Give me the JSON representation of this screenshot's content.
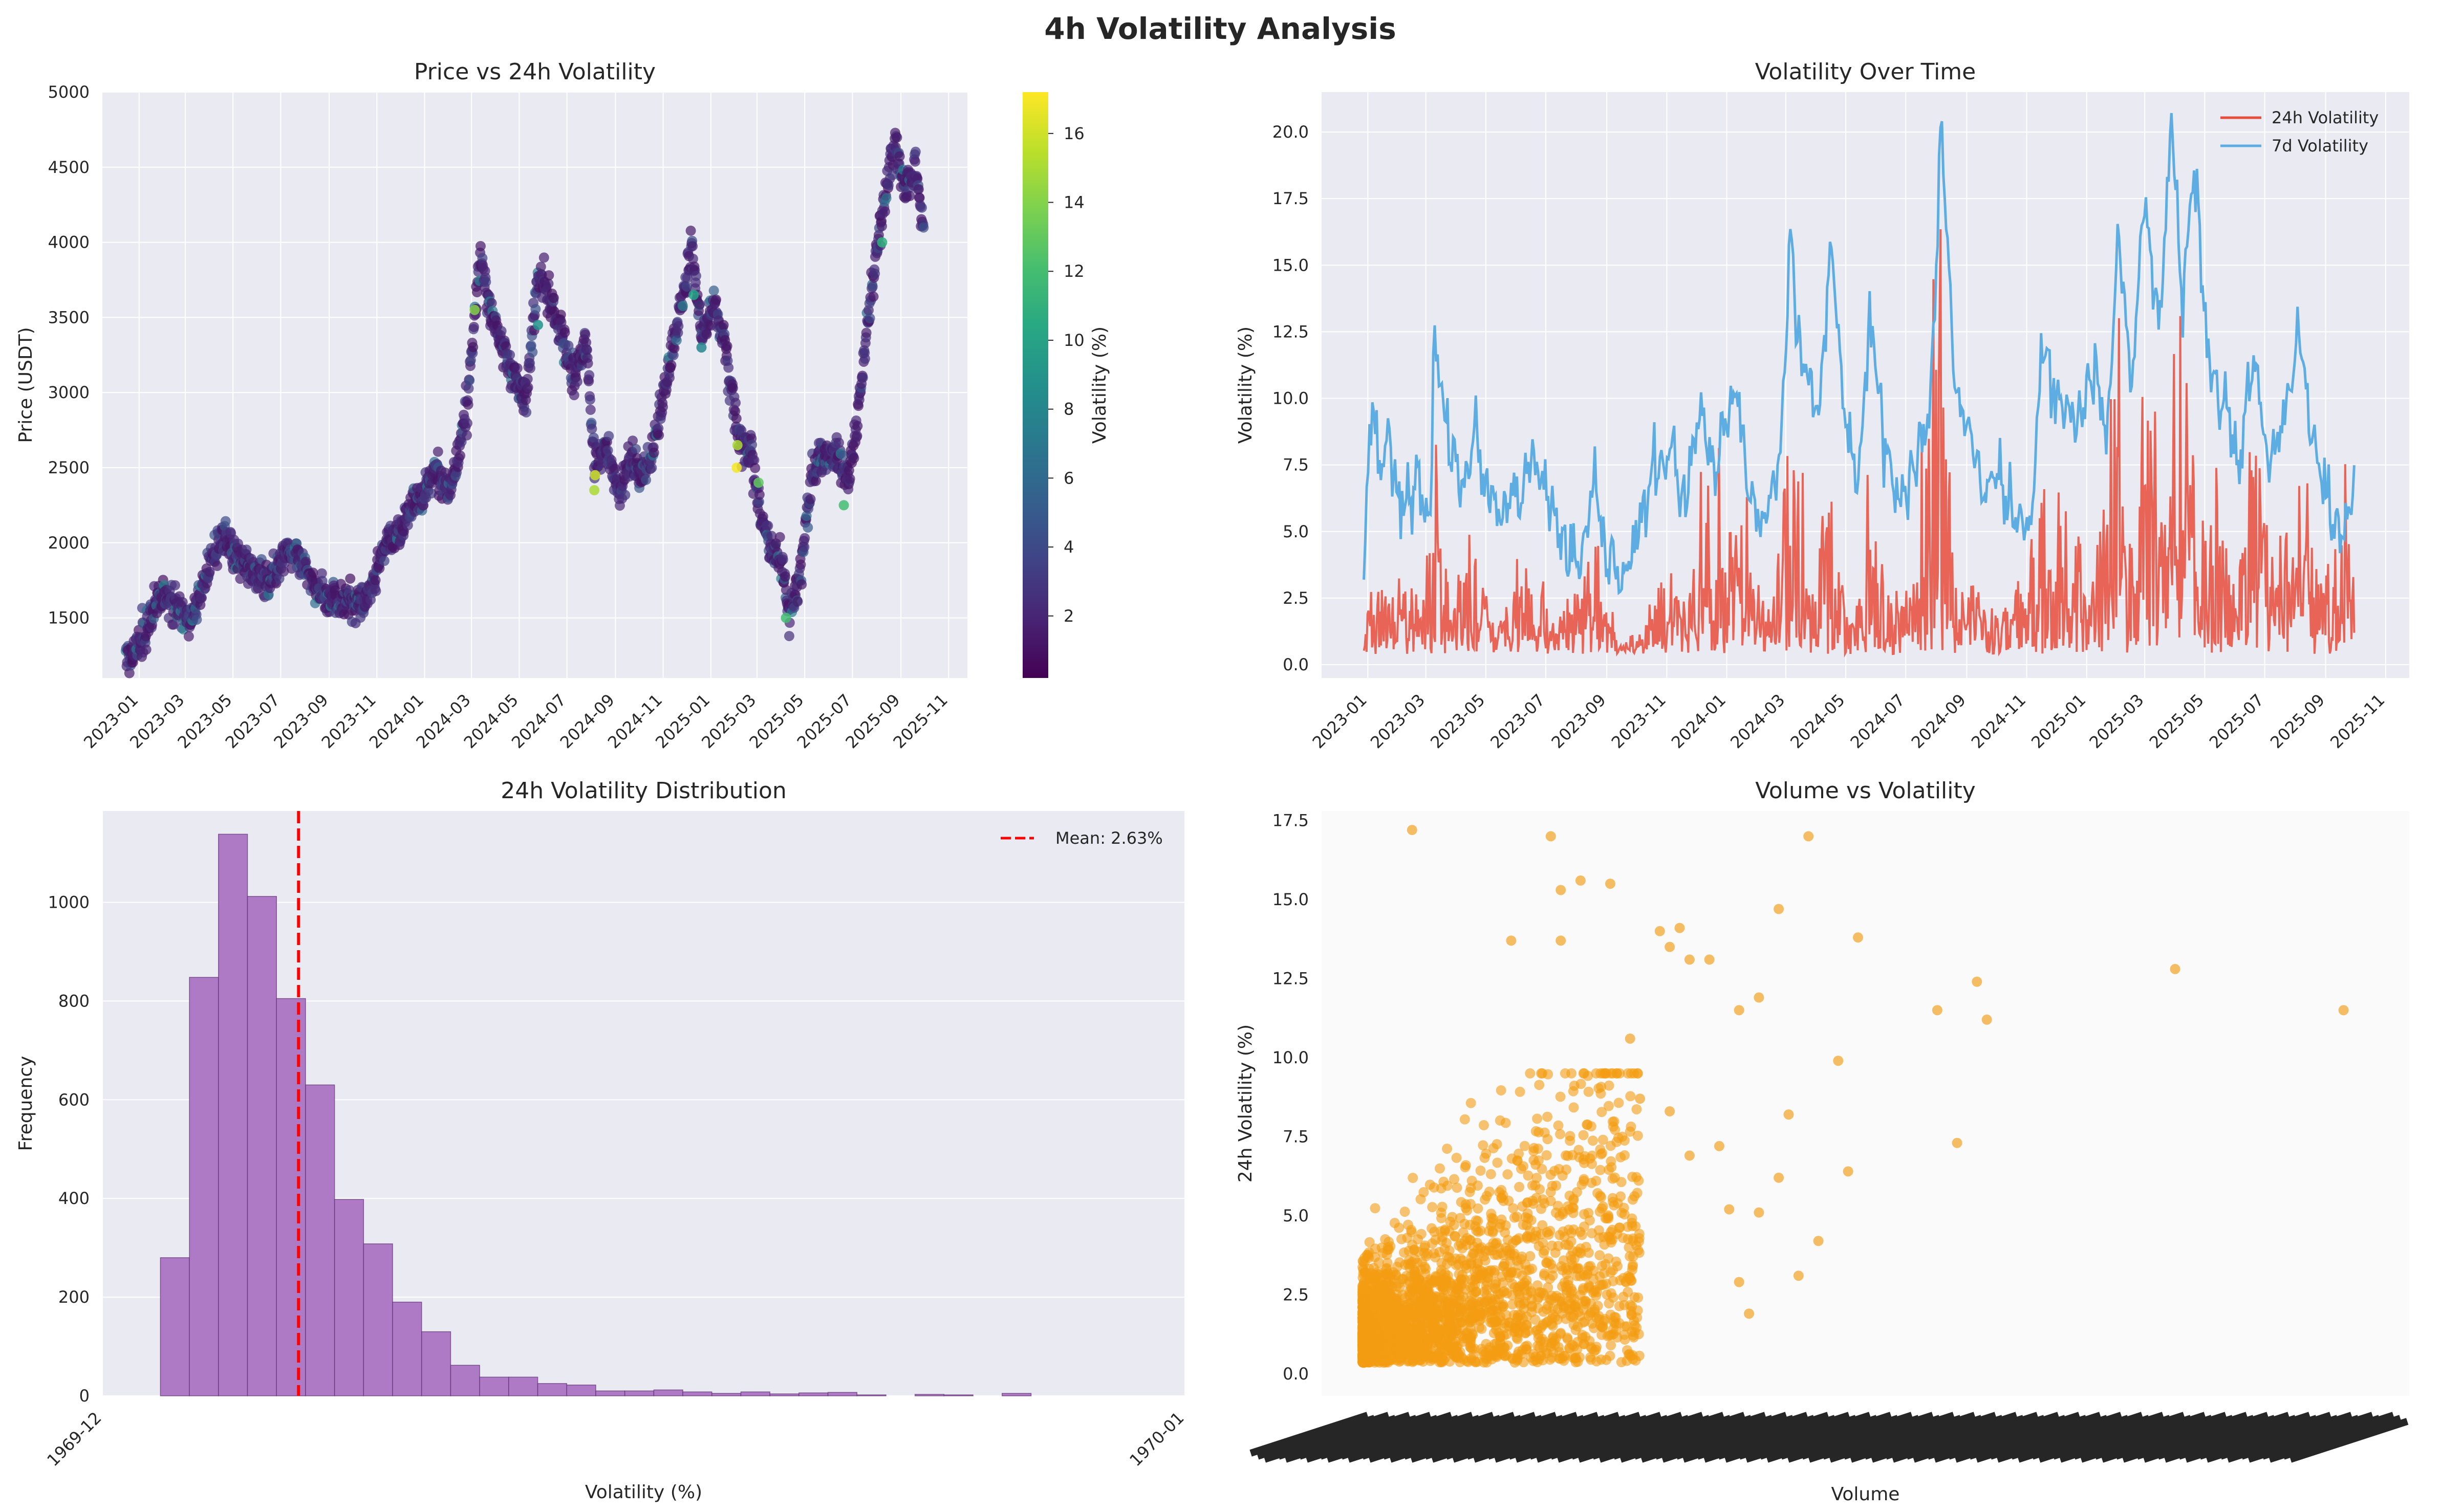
{
  "figure": {
    "suptitle": "4h Volatility Analysis"
  },
  "chart_data": [
    {
      "id": "price",
      "type": "scatter",
      "title": "Price vs 24h Volatility",
      "xlabel": "",
      "ylabel": "Price (USDT)",
      "x_ticks": [
        "2023-01",
        "2023-03",
        "2023-05",
        "2023-07",
        "2023-09",
        "2023-11",
        "2024-01",
        "2024-03",
        "2024-05",
        "2024-07",
        "2024-09",
        "2024-11",
        "2025-01",
        "2025-03",
        "2025-05",
        "2025-07",
        "2025-09",
        "2025-11"
      ],
      "y_ticks": [
        1500,
        2000,
        2500,
        3000,
        3500,
        4000,
        4500,
        5000
      ],
      "ylim": [
        1100,
        5000
      ],
      "colorbar": {
        "label": "Volatility (%)",
        "ticks": [
          2,
          4,
          6,
          8,
          10,
          12,
          14,
          16
        ],
        "range": [
          0.2,
          17.2
        ],
        "colormap": "viridis"
      },
      "price_path": [
        [
          "2022-12-15",
          1200
        ],
        [
          "2022-12-28",
          1300
        ],
        [
          "2023-01-10",
          1420
        ],
        [
          "2023-01-20",
          1600
        ],
        [
          "2023-02-05",
          1650
        ],
        [
          "2023-02-20",
          1560
        ],
        [
          "2023-03-10",
          1480
        ],
        [
          "2023-03-25",
          1750
        ],
        [
          "2023-04-10",
          1950
        ],
        [
          "2023-04-20",
          2100
        ],
        [
          "2023-05-05",
          1900
        ],
        [
          "2023-05-25",
          1820
        ],
        [
          "2023-06-15",
          1750
        ],
        [
          "2023-06-30",
          1900
        ],
        [
          "2023-07-15",
          1950
        ],
        [
          "2023-07-30",
          1850
        ],
        [
          "2023-08-15",
          1680
        ],
        [
          "2023-08-30",
          1650
        ],
        [
          "2023-09-15",
          1600
        ],
        [
          "2023-09-30",
          1620
        ],
        [
          "2023-10-15",
          1580
        ],
        [
          "2023-10-30",
          1800
        ],
        [
          "2023-11-15",
          2050
        ],
        [
          "2023-11-30",
          2050
        ],
        [
          "2023-12-15",
          2250
        ],
        [
          "2023-12-30",
          2300
        ],
        [
          "2024-01-15",
          2500
        ],
        [
          "2024-01-30",
          2350
        ],
        [
          "2024-02-10",
          2500
        ],
        [
          "2024-02-25",
          2950
        ],
        [
          "2024-03-12",
          3900
        ],
        [
          "2024-03-25",
          3550
        ],
        [
          "2024-04-10",
          3300
        ],
        [
          "2024-04-25",
          3100
        ],
        [
          "2024-05-10",
          2950
        ],
        [
          "2024-05-25",
          3800
        ],
        [
          "2024-06-10",
          3600
        ],
        [
          "2024-06-25",
          3350
        ],
        [
          "2024-07-10",
          3100
        ],
        [
          "2024-07-25",
          3350
        ],
        [
          "2024-08-05",
          2500
        ],
        [
          "2024-08-20",
          2650
        ],
        [
          "2024-09-05",
          2350
        ],
        [
          "2024-09-20",
          2550
        ],
        [
          "2024-10-05",
          2450
        ],
        [
          "2024-10-20",
          2650
        ],
        [
          "2024-11-10",
          3200
        ],
        [
          "2024-11-25",
          3600
        ],
        [
          "2024-12-08",
          3950
        ],
        [
          "2024-12-20",
          3400
        ],
        [
          "2025-01-05",
          3600
        ],
        [
          "2025-01-20",
          3300
        ],
        [
          "2025-02-05",
          2700
        ],
        [
          "2025-02-20",
          2650
        ],
        [
          "2025-03-05",
          2200
        ],
        [
          "2025-03-20",
          1950
        ],
        [
          "2025-04-05",
          1800
        ],
        [
          "2025-04-10",
          1500
        ],
        [
          "2025-04-25",
          1800
        ],
        [
          "2025-05-10",
          2450
        ],
        [
          "2025-05-25",
          2600
        ],
        [
          "2025-06-10",
          2600
        ],
        [
          "2025-06-25",
          2400
        ],
        [
          "2025-07-10",
          2950
        ],
        [
          "2025-07-25",
          3700
        ],
        [
          "2025-08-10",
          4250
        ],
        [
          "2025-08-25",
          4700
        ],
        [
          "2025-09-05",
          4350
        ],
        [
          "2025-09-20",
          4500
        ],
        [
          "2025-09-30",
          4050
        ]
      ],
      "high_vol_points": [
        [
          "2024-03-05",
          3550,
          14
        ],
        [
          "2024-05-25",
          3450,
          9
        ],
        [
          "2024-08-05",
          2350,
          15
        ],
        [
          "2024-08-06",
          2450,
          16
        ],
        [
          "2024-12-10",
          3650,
          10
        ],
        [
          "2024-12-20",
          3300,
          8
        ],
        [
          "2025-02-03",
          2500,
          17
        ],
        [
          "2025-02-04",
          2650,
          15
        ],
        [
          "2025-03-03",
          2400,
          13
        ],
        [
          "2025-04-07",
          1500,
          12
        ],
        [
          "2025-06-20",
          2250,
          12
        ],
        [
          "2025-08-08",
          4000,
          11
        ]
      ]
    },
    {
      "id": "voltime",
      "type": "line",
      "title": "Volatility Over Time",
      "xlabel": "",
      "ylabel": "Volatility (%)",
      "x_ticks": [
        "2023-01",
        "2023-03",
        "2023-05",
        "2023-07",
        "2023-09",
        "2023-11",
        "2024-01",
        "2024-03",
        "2024-05",
        "2024-07",
        "2024-09",
        "2024-11",
        "2025-01",
        "2025-03",
        "2025-05",
        "2025-07",
        "2025-09",
        "2025-11"
      ],
      "y_ticks": [
        "0.0",
        "2.5",
        "5.0",
        "7.5",
        "10.0",
        "12.5",
        "15.0",
        "17.5",
        "20.0"
      ],
      "ylim": [
        -0.5,
        21.5
      ],
      "legend": {
        "placement": "top-right",
        "entries": [
          "24h Volatility",
          "7d Volatility"
        ]
      },
      "series": [
        {
          "name": "7d Volatility",
          "color": "#5DADE2",
          "points": [
            [
              "2022-12-28",
              3.8
            ],
            [
              "2023-01-05",
              10.2
            ],
            [
              "2023-01-12",
              7.5
            ],
            [
              "2023-01-22",
              8.5
            ],
            [
              "2023-02-05",
              6.0
            ],
            [
              "2023-02-20",
              7.0
            ],
            [
              "2023-03-05",
              4.5
            ],
            [
              "2023-03-10",
              13.0
            ],
            [
              "2023-03-20",
              9.0
            ],
            [
              "2023-04-05",
              7.0
            ],
            [
              "2023-04-20",
              8.5
            ],
            [
              "2023-05-05",
              6.0
            ],
            [
              "2023-05-20",
              5.5
            ],
            [
              "2023-06-05",
              6.5
            ],
            [
              "2023-06-20",
              7.5
            ],
            [
              "2023-07-05",
              6.0
            ],
            [
              "2023-07-20",
              4.5
            ],
            [
              "2023-08-05",
              3.5
            ],
            [
              "2023-08-18",
              6.5
            ],
            [
              "2023-09-01",
              4.0
            ],
            [
              "2023-09-15",
              3.5
            ],
            [
              "2023-10-01",
              4.5
            ],
            [
              "2023-10-20",
              7.5
            ],
            [
              "2023-11-05",
              8.0
            ],
            [
              "2023-11-20",
              6.0
            ],
            [
              "2023-12-05",
              9.5
            ],
            [
              "2023-12-20",
              7.0
            ],
            [
              "2024-01-10",
              10.5
            ],
            [
              "2024-01-25",
              6.0
            ],
            [
              "2024-02-10",
              5.5
            ],
            [
              "2024-02-25",
              8.0
            ],
            [
              "2024-03-05",
              15.8
            ],
            [
              "2024-03-20",
              11.0
            ],
            [
              "2024-04-05",
              10.0
            ],
            [
              "2024-04-15",
              15.5
            ],
            [
              "2024-05-01",
              9.0
            ],
            [
              "2024-05-15",
              7.0
            ],
            [
              "2024-05-25",
              13.5
            ],
            [
              "2024-06-10",
              8.0
            ],
            [
              "2024-06-25",
              6.0
            ],
            [
              "2024-07-10",
              7.5
            ],
            [
              "2024-07-25",
              9.0
            ],
            [
              "2024-08-06",
              20.1
            ],
            [
              "2024-08-20",
              10.5
            ],
            [
              "2024-09-05",
              8.5
            ],
            [
              "2024-09-20",
              6.5
            ],
            [
              "2024-10-05",
              7.0
            ],
            [
              "2024-10-20",
              5.5
            ],
            [
              "2024-11-05",
              5.0
            ],
            [
              "2024-11-15",
              11.5
            ],
            [
              "2024-12-05",
              10.0
            ],
            [
              "2024-12-20",
              9.0
            ],
            [
              "2025-01-10",
              11.0
            ],
            [
              "2025-01-22",
              8.5
            ],
            [
              "2025-02-03",
              16.3
            ],
            [
              "2025-02-15",
              10.0
            ],
            [
              "2025-02-28",
              17.8
            ],
            [
              "2025-03-15",
              12.5
            ],
            [
              "2025-03-28",
              20.3
            ],
            [
              "2025-04-08",
              14.0
            ],
            [
              "2025-04-20",
              19.0
            ],
            [
              "2025-05-05",
              11.0
            ],
            [
              "2025-05-20",
              10.0
            ],
            [
              "2025-06-05",
              8.0
            ],
            [
              "2025-06-20",
              11.5
            ],
            [
              "2025-07-05",
              7.0
            ],
            [
              "2025-07-20",
              9.0
            ],
            [
              "2025-08-05",
              12.8
            ],
            [
              "2025-08-20",
              8.0
            ],
            [
              "2025-09-05",
              6.0
            ],
            [
              "2025-09-20",
              4.5
            ],
            [
              "2025-09-30",
              6.9
            ]
          ]
        },
        {
          "name": "24h Volatility",
          "color": "#E74C3C",
          "points": [
            [
              "2022-12-28",
              1.0
            ],
            [
              "2023-01-08",
              5.0
            ],
            [
              "2023-01-20",
              2.5
            ],
            [
              "2023-02-05",
              3.5
            ],
            [
              "2023-02-20",
              2.0
            ],
            [
              "2023-03-10",
              7.5
            ],
            [
              "2023-03-25",
              2.5
            ],
            [
              "2023-04-20",
              5.0
            ],
            [
              "2023-05-10",
              1.5
            ],
            [
              "2023-06-05",
              3.0
            ],
            [
              "2023-06-20",
              4.0
            ],
            [
              "2023-07-10",
              1.2
            ],
            [
              "2023-08-18",
              4.5
            ],
            [
              "2023-09-10",
              0.8
            ],
            [
              "2023-10-10",
              1.0
            ],
            [
              "2023-10-25",
              3.5
            ],
            [
              "2023-11-20",
              2.5
            ],
            [
              "2023-12-15",
              5.0
            ],
            [
              "2024-01-10",
              7.0
            ],
            [
              "2024-02-10",
              2.0
            ],
            [
              "2024-03-05",
              8.5
            ],
            [
              "2024-03-25",
              3.5
            ],
            [
              "2024-04-15",
              6.5
            ],
            [
              "2024-05-05",
              2.5
            ],
            [
              "2024-05-25",
              6.0
            ],
            [
              "2024-06-20",
              2.0
            ],
            [
              "2024-07-10",
              4.0
            ],
            [
              "2024-08-06",
              17.0
            ],
            [
              "2024-08-25",
              3.0
            ],
            [
              "2024-09-20",
              2.5
            ],
            [
              "2024-10-15",
              2.0
            ],
            [
              "2024-11-12",
              6.0
            ],
            [
              "2024-12-10",
              7.0
            ],
            [
              "2025-01-05",
              3.0
            ],
            [
              "2025-02-03",
              12.0
            ],
            [
              "2025-02-20",
              5.0
            ],
            [
              "2025-03-05",
              13.5
            ],
            [
              "2025-03-20",
              6.0
            ],
            [
              "2025-04-07",
              14.0
            ],
            [
              "2025-04-25",
              5.0
            ],
            [
              "2025-05-10",
              6.5
            ],
            [
              "2025-06-01",
              3.0
            ],
            [
              "2025-06-20",
              10.5
            ],
            [
              "2025-07-10",
              4.0
            ],
            [
              "2025-08-05",
              8.0
            ],
            [
              "2025-08-25",
              3.0
            ],
            [
              "2025-09-15",
              5.5
            ],
            [
              "2025-09-30",
              4.0
            ]
          ]
        }
      ]
    },
    {
      "id": "hist",
      "type": "bar",
      "title": "24h Volatility Distribution",
      "xlabel": "Volatility (%)",
      "ylabel": "Frequency",
      "x_ticks": [
        "1969-12",
        "1970-01"
      ],
      "y_ticks": [
        0,
        200,
        400,
        600,
        800,
        1000
      ],
      "ylim": [
        0,
        1185
      ],
      "legend": {
        "placement": "top-right",
        "entries": [
          "Mean: 2.63%"
        ]
      },
      "mean": 2.63,
      "bin_width": 0.5,
      "bin_start": 0.25,
      "values": [
        280,
        848,
        1138,
        1012,
        805,
        630,
        398,
        308,
        190,
        130,
        62,
        38,
        38,
        25,
        22,
        10,
        10,
        12,
        8,
        5,
        8,
        4,
        6,
        7,
        2,
        0,
        3,
        2,
        0,
        5,
        0
      ],
      "color": "#AF7AC5"
    },
    {
      "id": "volume",
      "type": "scatter",
      "title": "Volume vs Volatility",
      "xlabel": "Volume",
      "ylabel": "24h Volatility (%)",
      "y_ticks": [
        "0.0",
        "2.5",
        "5.0",
        "7.5",
        "10.0",
        "12.5",
        "15.0",
        "17.5"
      ],
      "ylim": [
        -0.7,
        17.8
      ],
      "color": "#F39C12",
      "outlier_points": [
        [
          0.05,
          17.2
        ],
        [
          0.19,
          17.0
        ],
        [
          0.2,
          15.3
        ],
        [
          0.22,
          15.6
        ],
        [
          0.25,
          15.5
        ],
        [
          0.2,
          13.7
        ],
        [
          0.15,
          13.7
        ],
        [
          0.3,
          14.0
        ],
        [
          0.32,
          14.1
        ],
        [
          0.31,
          13.5
        ],
        [
          0.33,
          13.1
        ],
        [
          0.42,
          14.7
        ],
        [
          0.45,
          17.0
        ],
        [
          0.43,
          8.2
        ],
        [
          0.35,
          13.1
        ],
        [
          0.4,
          11.9
        ],
        [
          0.38,
          11.5
        ],
        [
          0.5,
          13.8
        ],
        [
          0.48,
          9.9
        ],
        [
          0.49,
          6.4
        ],
        [
          0.46,
          4.2
        ],
        [
          0.44,
          3.1
        ],
        [
          0.42,
          6.2
        ],
        [
          0.58,
          11.5
        ],
        [
          0.6,
          7.3
        ],
        [
          0.62,
          12.4
        ],
        [
          0.63,
          11.2
        ],
        [
          0.82,
          12.8
        ],
        [
          0.99,
          11.5
        ],
        [
          0.37,
          5.2
        ],
        [
          0.36,
          7.2
        ],
        [
          0.38,
          2.9
        ],
        [
          0.39,
          1.9
        ],
        [
          0.4,
          5.1
        ],
        [
          0.27,
          10.6
        ],
        [
          0.28,
          8.7
        ],
        [
          0.31,
          8.3
        ],
        [
          0.33,
          6.9
        ]
      ]
    }
  ]
}
